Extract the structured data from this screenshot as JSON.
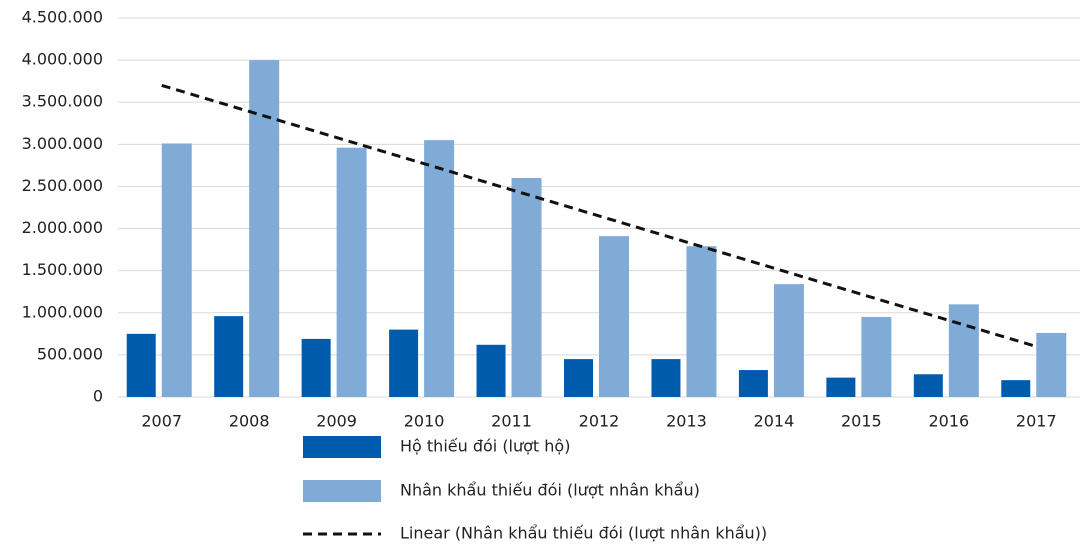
{
  "chart_data": {
    "type": "bar",
    "categories": [
      "2007",
      "2008",
      "2009",
      "2010",
      "2011",
      "2012",
      "2013",
      "2014",
      "2015",
      "2016",
      "2017"
    ],
    "series": [
      {
        "name": "Hộ thiếu đói (lượt hộ)",
        "color": "#005bac",
        "values": [
          750000,
          960000,
          690000,
          800000,
          620000,
          450000,
          450000,
          320000,
          230000,
          270000,
          200000
        ]
      },
      {
        "name": "Nhân khẩu thiếu đói (lượt nhân khẩu)",
        "color": "#7fabd6",
        "values": [
          3010000,
          4000000,
          2960000,
          3050000,
          2600000,
          1910000,
          1790000,
          1340000,
          950000,
          1100000,
          760000
        ]
      }
    ],
    "trendline": {
      "name": "Linear (Nhân khẩu thiếu đói (lượt nhân khẩu))",
      "color": "#111111",
      "values": [
        3700000,
        3390000,
        3080000,
        2770000,
        2460000,
        2150000,
        1840000,
        1530000,
        1220000,
        910000,
        600000
      ]
    },
    "ylim": [
      0,
      4500000
    ],
    "yticks": [
      0,
      {
        "value": 500000,
        "label": "500.000"
      },
      {
        "value": 1000000,
        "label": "1.000.000"
      },
      {
        "value": 1500000,
        "label": "1.500.000"
      },
      {
        "value": 2000000,
        "label": "2.000.000"
      },
      {
        "value": 2500000,
        "label": "2.500.000"
      },
      {
        "value": 3000000,
        "label": "3.000.000"
      },
      {
        "value": 3500000,
        "label": "3.500.000"
      },
      {
        "value": 4000000,
        "label": "4.000.000"
      },
      {
        "value": 4500000,
        "label": "4.500.000"
      }
    ],
    "grid": true
  }
}
